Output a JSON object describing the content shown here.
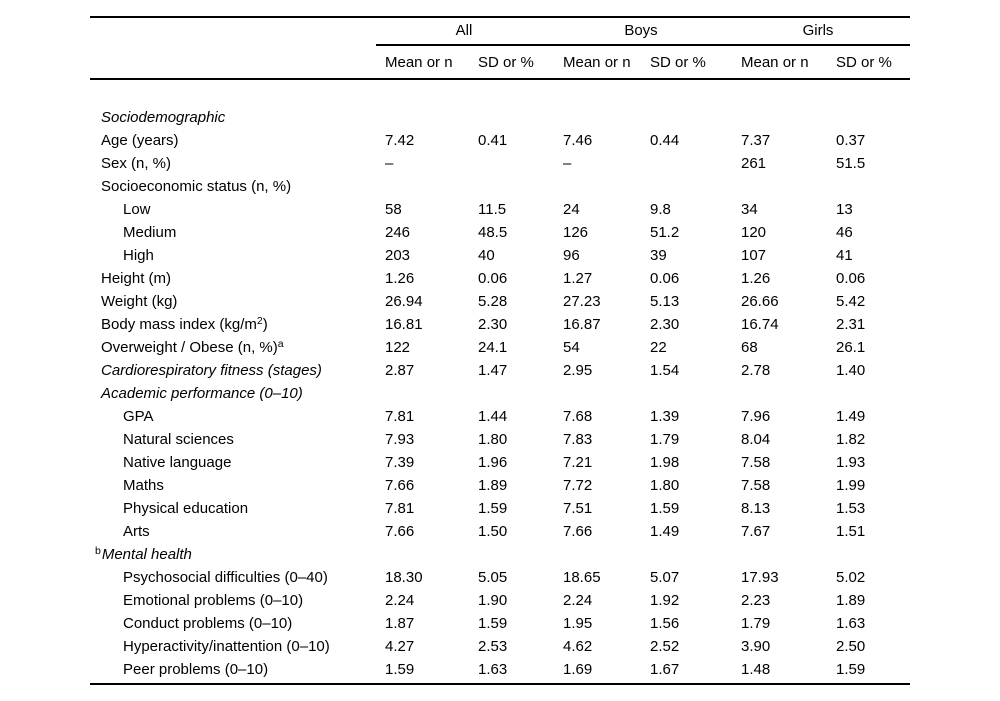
{
  "table": {
    "col_groups": [
      "All",
      "Boys",
      "Girls"
    ],
    "sub_headers": [
      "Mean or n",
      "SD or %",
      "Mean or n",
      "SD or %",
      "Mean or n",
      "SD or %"
    ],
    "rows": [
      {
        "label": "Sociodemographic",
        "italic": true,
        "indent": 0,
        "values": [
          "",
          "",
          "",
          "",
          "",
          ""
        ]
      },
      {
        "label": "Age (years)",
        "indent": 0,
        "values": [
          "7.42",
          "0.41",
          "7.46",
          "0.44",
          "7.37",
          "0.37"
        ]
      },
      {
        "label": "Sex (n, %)",
        "indent": 0,
        "values": [
          "–",
          "",
          "–",
          "",
          "261",
          "51.5"
        ]
      },
      {
        "label": "Socioeconomic status (n, %)",
        "indent": 0,
        "values": [
          "",
          "",
          "",
          "",
          "",
          ""
        ]
      },
      {
        "label": "Low",
        "indent": 1,
        "values": [
          "58",
          "11.5",
          "24",
          "9.8",
          "34",
          "13"
        ]
      },
      {
        "label": "Medium",
        "indent": 1,
        "values": [
          "246",
          "48.5",
          "126",
          "51.2",
          "120",
          "46"
        ]
      },
      {
        "label": "High",
        "indent": 1,
        "values": [
          "203",
          "40",
          "96",
          "39",
          "107",
          "41"
        ]
      },
      {
        "label": "Height (m)",
        "indent": 0,
        "values": [
          "1.26",
          "0.06",
          "1.27",
          "0.06",
          "1.26",
          "0.06"
        ]
      },
      {
        "label": "Weight (kg)",
        "indent": 0,
        "values": [
          "26.94",
          "5.28",
          "27.23",
          "5.13",
          "26.66",
          "5.42"
        ]
      },
      {
        "label": "Body mass index (kg/m",
        "sup": "2",
        "label_end": ")",
        "indent": 0,
        "values": [
          "16.81",
          "2.30",
          "16.87",
          "2.30",
          "16.74",
          "2.31"
        ]
      },
      {
        "label": "Overweight / Obese (n, %)",
        "sup": "a",
        "indent": 0,
        "values": [
          "122",
          "24.1",
          "54",
          "22",
          "68",
          "26.1"
        ]
      },
      {
        "label": "Cardiorespiratory fitness (stages)",
        "italic": true,
        "indent": 0,
        "values": [
          "2.87",
          "1.47",
          "2.95",
          "1.54",
          "2.78",
          "1.40"
        ]
      },
      {
        "label": "Academic performance (0–10)",
        "italic": true,
        "indent": 0,
        "values": [
          "",
          "",
          "",
          "",
          "",
          ""
        ]
      },
      {
        "label": "GPA",
        "indent": 1,
        "values": [
          "7.81",
          "1.44",
          "7.68",
          "1.39",
          "7.96",
          "1.49"
        ]
      },
      {
        "label": "Natural sciences",
        "indent": 1,
        "values": [
          "7.93",
          "1.80",
          "7.83",
          "1.79",
          "8.04",
          "1.82"
        ]
      },
      {
        "label": "Native language",
        "indent": 1,
        "values": [
          "7.39",
          "1.96",
          "7.21",
          "1.98",
          "7.58",
          "1.93"
        ]
      },
      {
        "label": "Maths",
        "indent": 1,
        "values": [
          "7.66",
          "1.89",
          "7.72",
          "1.80",
          "7.58",
          "1.99"
        ]
      },
      {
        "label": "Physical education",
        "indent": 1,
        "values": [
          "7.81",
          "1.59",
          "7.51",
          "1.59",
          "8.13",
          "1.53"
        ]
      },
      {
        "label": "Arts",
        "indent": 1,
        "values": [
          "7.66",
          "1.50",
          "7.66",
          "1.49",
          "7.67",
          "1.51"
        ]
      },
      {
        "sup_pre": "b",
        "label": "Mental health",
        "italic": true,
        "indent": 0,
        "values": [
          "",
          "",
          "",
          "",
          "",
          ""
        ]
      },
      {
        "label": "Psychosocial difficulties (0–40)",
        "indent": 1,
        "values": [
          "18.30",
          "5.05",
          "18.65",
          "5.07",
          "17.93",
          "5.02"
        ]
      },
      {
        "label": "Emotional problems (0–10)",
        "indent": 1,
        "values": [
          "2.24",
          "1.90",
          "2.24",
          "1.92",
          "2.23",
          "1.89"
        ]
      },
      {
        "label": "Conduct problems (0–10)",
        "indent": 1,
        "values": [
          "1.87",
          "1.59",
          "1.95",
          "1.56",
          "1.79",
          "1.63"
        ]
      },
      {
        "label": "Hyperactivity/inattention (0–10)",
        "indent": 1,
        "values": [
          "4.27",
          "2.53",
          "4.62",
          "2.52",
          "3.90",
          "2.50"
        ]
      },
      {
        "label": "Peer problems (0–10)",
        "indent": 1,
        "values": [
          "1.59",
          "1.63",
          "1.69",
          "1.67",
          "1.48",
          "1.59"
        ]
      }
    ]
  }
}
